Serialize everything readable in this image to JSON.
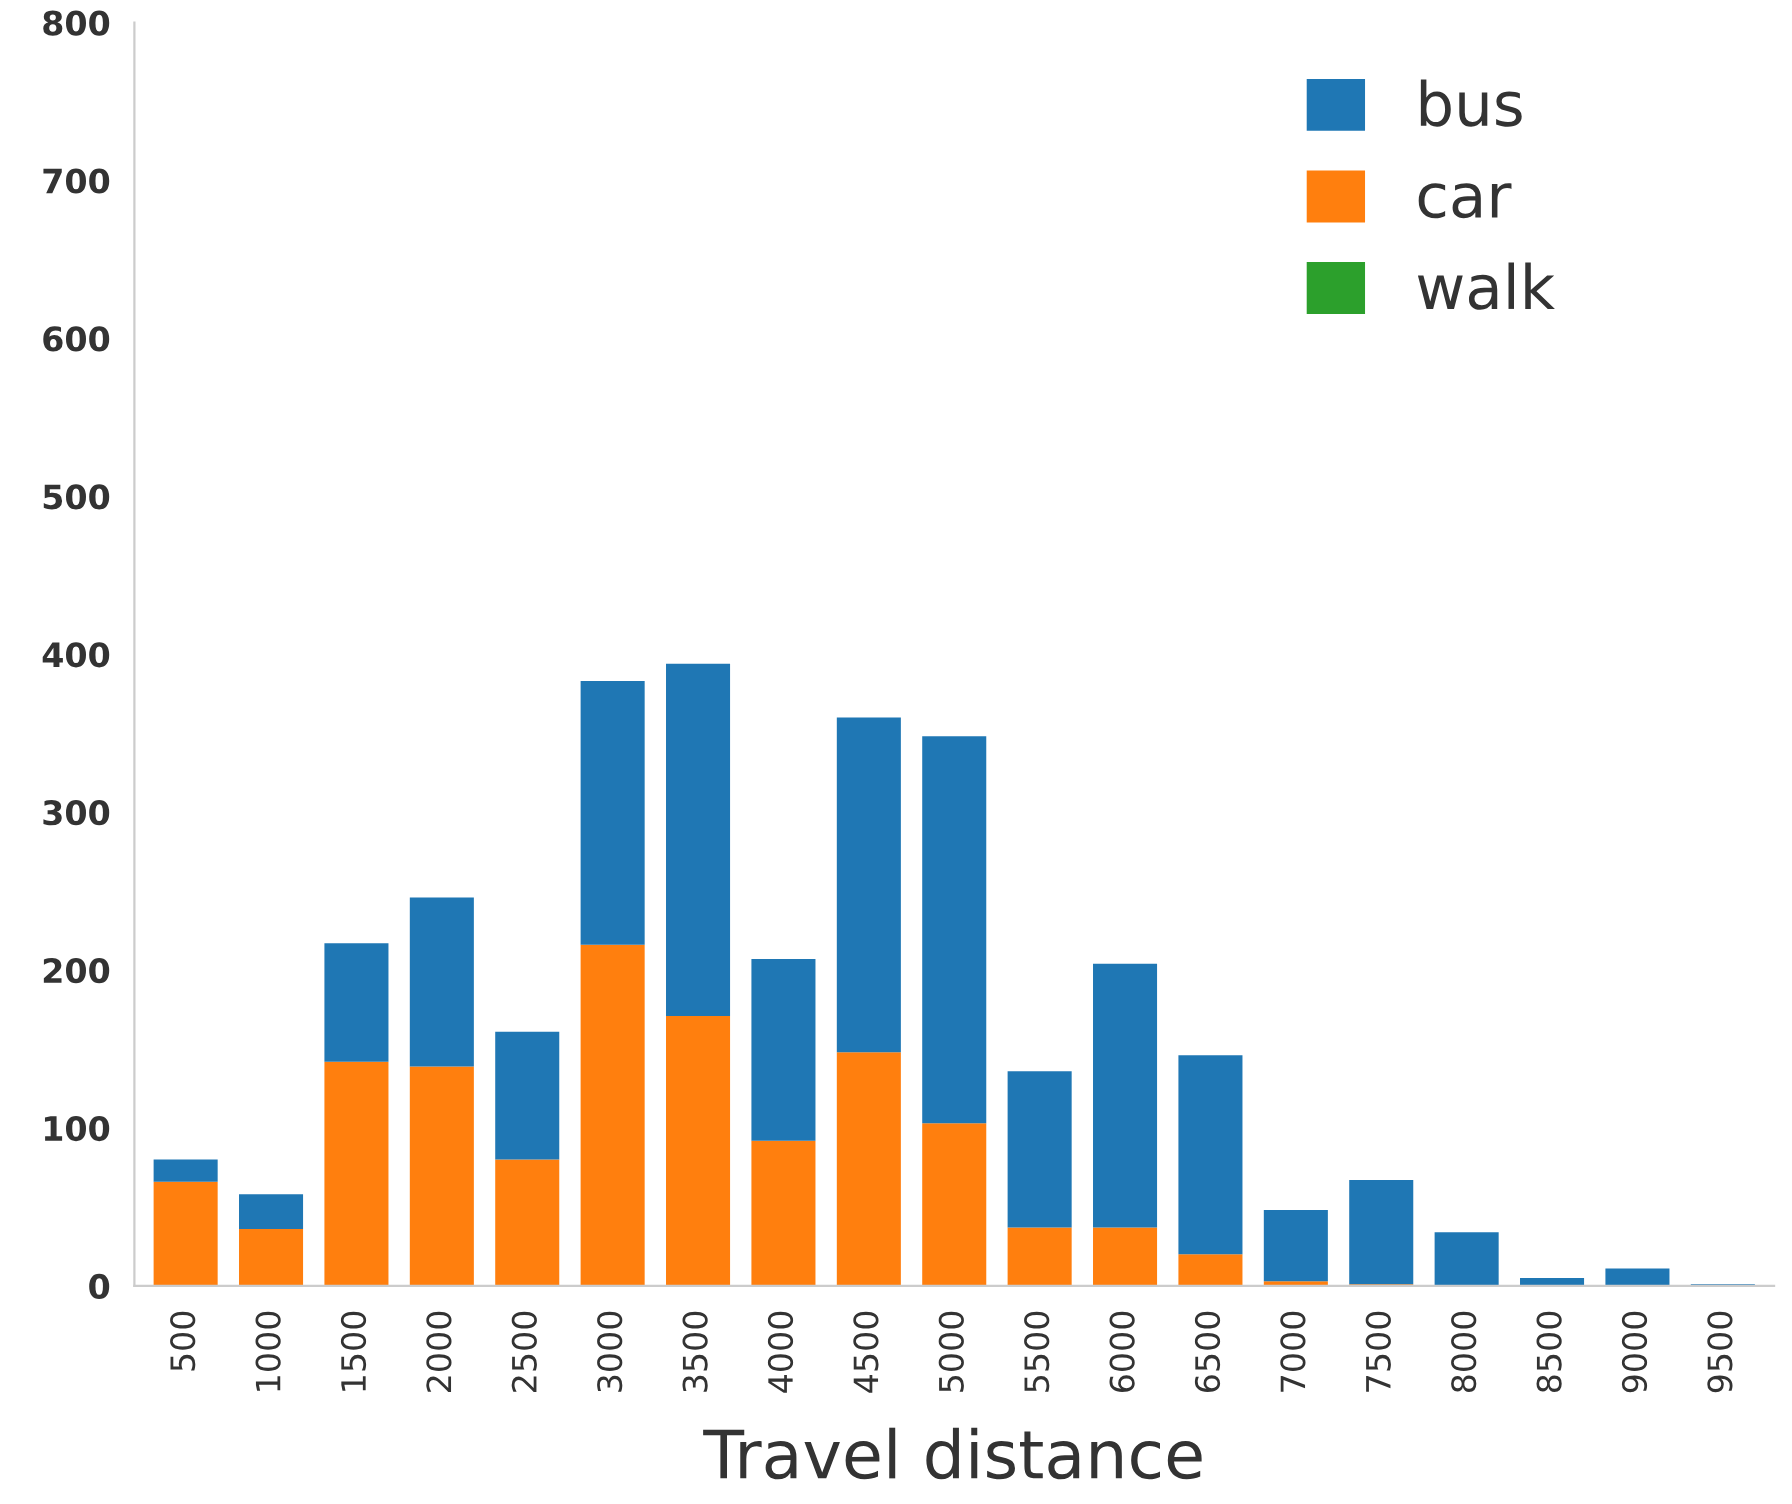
{
  "chart_data": {
    "type": "bar",
    "stacked": true,
    "xlabel": "Travel distance",
    "categories": [
      "500",
      "1000",
      "1500",
      "2000",
      "2500",
      "3000",
      "3500",
      "4000",
      "4500",
      "5000",
      "5500",
      "6000",
      "6500",
      "7000",
      "7500",
      "8000",
      "8500",
      "9000",
      "9500"
    ],
    "series": [
      {
        "name": "walk",
        "color": "#2ca02c",
        "values": [
          0,
          0,
          0,
          0,
          0,
          0,
          0,
          0,
          0,
          0,
          0,
          0,
          0,
          0,
          0,
          0,
          0,
          0,
          0
        ]
      },
      {
        "name": "car",
        "color": "#ff7f0e",
        "values": [
          66,
          36,
          142,
          139,
          80,
          216,
          171,
          92,
          148,
          103,
          37,
          37,
          20,
          3,
          1,
          0,
          0,
          0,
          0
        ]
      },
      {
        "name": "bus",
        "color": "#1f77b4",
        "values": [
          14,
          22,
          75,
          107,
          81,
          167,
          223,
          115,
          212,
          245,
          99,
          167,
          126,
          45,
          66,
          34,
          5,
          11,
          1
        ]
      }
    ],
    "ylim": [
      0,
      800
    ],
    "yticks": [
      0,
      100,
      200,
      300,
      400,
      500,
      600,
      700,
      800
    ],
    "grid": false,
    "legend": "top right"
  }
}
